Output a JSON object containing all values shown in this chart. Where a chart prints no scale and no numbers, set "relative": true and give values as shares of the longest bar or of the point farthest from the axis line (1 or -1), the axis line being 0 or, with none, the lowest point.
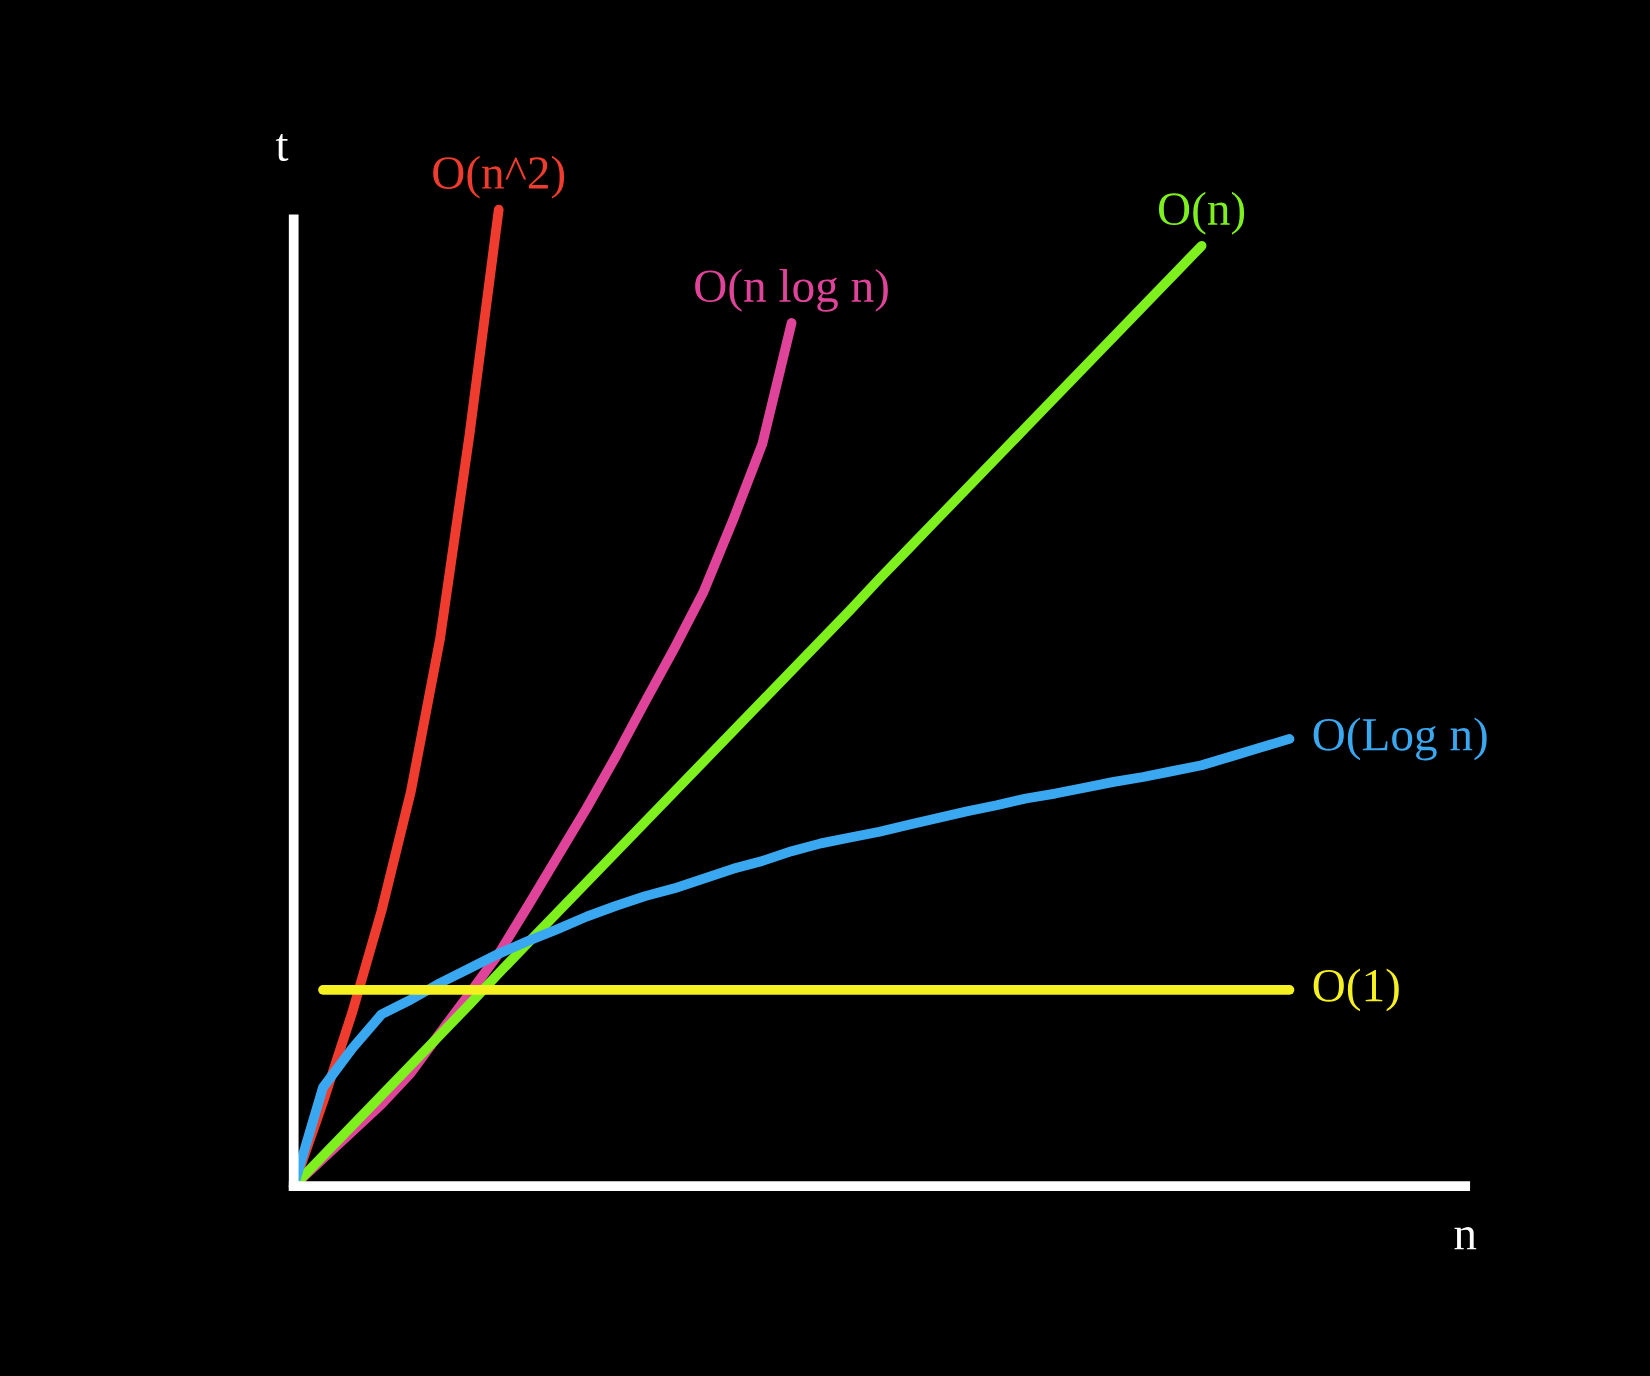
{
  "chart_data": {
    "type": "line",
    "relative": true,
    "xlabel": "n",
    "ylabel": "t",
    "grid": false,
    "legend": false,
    "marker": "none",
    "line_style": "solid",
    "categories": [
      null,
      null,
      null,
      null,
      null,
      null,
      null,
      null,
      null,
      null,
      null,
      null,
      null,
      null,
      null,
      null,
      null,
      null,
      null,
      null,
      null,
      null,
      null,
      null,
      null,
      null,
      null,
      null,
      null,
      null,
      null,
      null,
      null,
      null,
      null,
      null,
      null,
      null,
      null,
      null,
      null
    ],
    "series": [
      {
        "name": "O(n^2)",
        "color": "#f03c2e",
        "values": [
          0,
          0.086,
          0.178,
          0.282,
          0.404,
          0.561,
          0.769,
          1.0,
          null,
          null,
          null,
          null,
          null,
          null,
          null,
          null,
          null,
          null,
          null,
          null,
          null,
          null,
          null,
          null,
          null,
          null,
          null,
          null,
          null,
          null,
          null,
          null,
          null,
          null,
          null,
          null,
          null,
          null,
          null,
          null,
          null
        ]
      },
      {
        "name": "O(n log n)",
        "color": "#e0449a",
        "values": [
          0,
          0.028,
          0.056,
          0.084,
          0.116,
          0.157,
          0.197,
          0.238,
          0.287,
          0.337,
          0.387,
          0.44,
          0.496,
          0.551,
          0.609,
          0.682,
          0.76,
          0.884,
          null,
          null,
          null,
          null,
          null,
          null,
          null,
          null,
          null,
          null,
          null,
          null,
          null,
          null,
          null,
          null,
          null,
          null,
          null,
          null,
          null,
          null,
          null
        ]
      },
      {
        "name": "O(n)",
        "color": "#7ef01e",
        "values": [
          0,
          0.031,
          0.062,
          0.093,
          0.124,
          0.155,
          0.186,
          0.218,
          0.249,
          0.28,
          0.311,
          0.342,
          0.373,
          0.404,
          0.435,
          0.466,
          0.497,
          0.528,
          0.559,
          0.59,
          0.622,
          0.653,
          0.684,
          0.715,
          0.746,
          0.777,
          0.808,
          0.839,
          0.87,
          0.901,
          0.932,
          0.963,
          null,
          null,
          null,
          null,
          null,
          null,
          null,
          null,
          null
        ]
      },
      {
        "name": "O(Log n)",
        "color": "#3aa8f0",
        "values": [
          0,
          0.101,
          0.141,
          0.176,
          0.191,
          0.208,
          0.223,
          0.238,
          0.251,
          0.263,
          0.276,
          0.287,
          0.297,
          0.305,
          0.315,
          0.325,
          0.333,
          0.343,
          0.351,
          0.357,
          0.363,
          0.37,
          0.377,
          0.384,
          0.39,
          0.397,
          0.402,
          0.408,
          0.414,
          0.419,
          0.425,
          0.431,
          0.44,
          0.449,
          0.458,
          null,
          null,
          null,
          null,
          null,
          null
        ]
      },
      {
        "name": "O(1)",
        "color": "#f5f020",
        "values": [
          null,
          0.201,
          0.201,
          0.201,
          0.201,
          0.201,
          0.201,
          0.201,
          0.201,
          0.201,
          0.201,
          0.201,
          0.201,
          0.201,
          0.201,
          0.201,
          0.201,
          0.201,
          0.201,
          0.201,
          0.201,
          0.201,
          0.201,
          0.201,
          0.201,
          0.201,
          0.201,
          0.201,
          0.201,
          0.201,
          0.201,
          0.201,
          0.201,
          0.201,
          0.201,
          null,
          null,
          null,
          null,
          null,
          null
        ]
      }
    ]
  }
}
